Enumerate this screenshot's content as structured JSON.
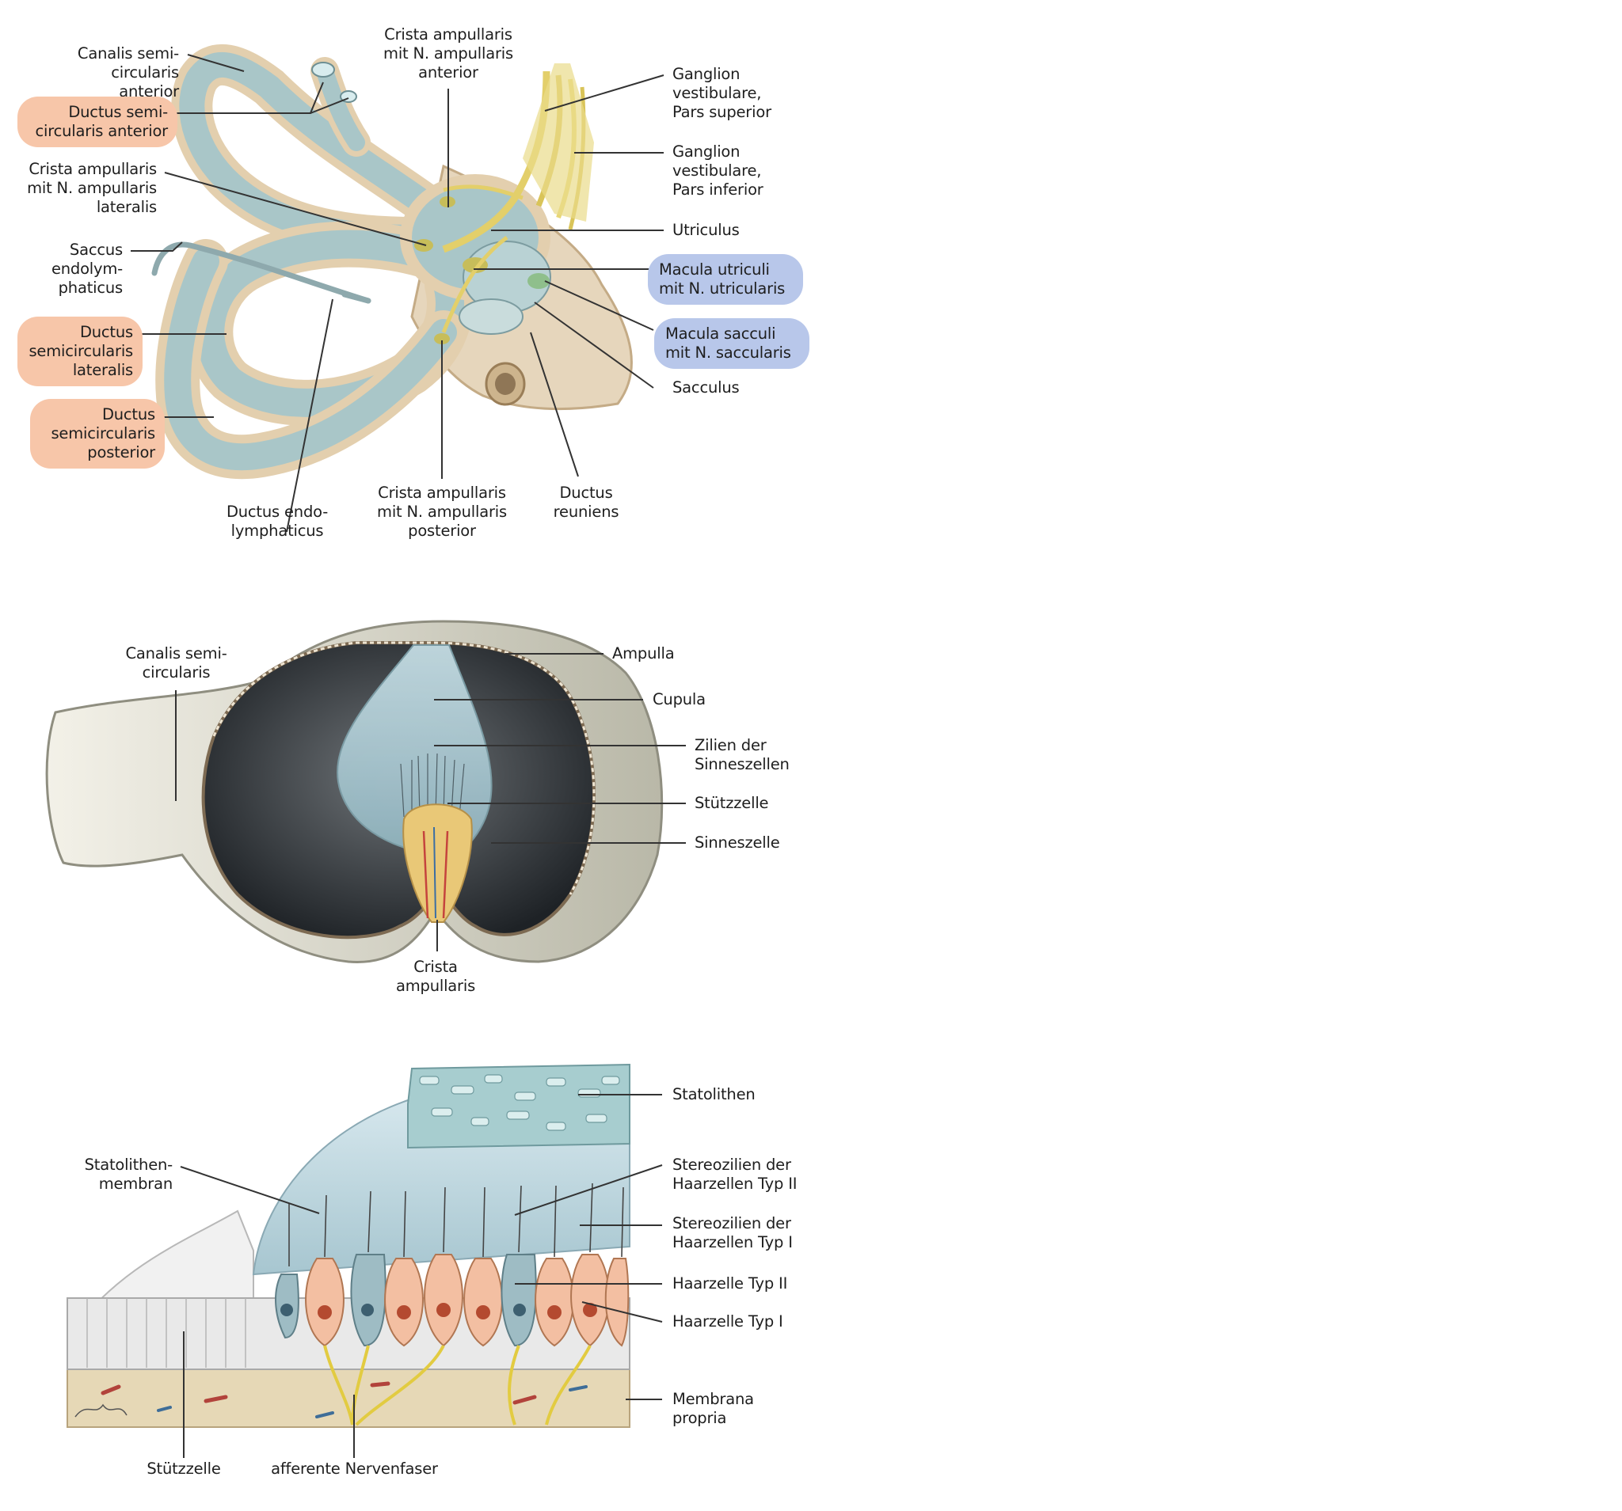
{
  "colors": {
    "highlight_orange": "#f7c6a9",
    "highlight_blue": "#b8c7ea",
    "duct_fill": "#aec9cc",
    "bone_fill": "#e4d3b8",
    "nerve": "#e3cf6a",
    "leader_line": "#333333"
  },
  "fig1": {
    "canalis_anterior": "Canalis semi-\ncircularis anterior",
    "ductus_anterior": "Ductus semi-\ncircularis anterior",
    "crista_lateralis": "Crista ampullaris\nmit N. ampullaris\nlateralis",
    "saccus": "Saccus\nendolym-\nphaticus",
    "ductus_lateralis": "Ductus\nsemicircularis\nlateralis",
    "ductus_posterior": "Ductus\nsemicircularis\nposterior",
    "ductus_endolymph": "Ductus endo-\nlymphaticus",
    "crista_posterior": "Crista ampullaris\nmit N. ampullaris\nposterior",
    "ductus_reuniens": "Ductus\nreuniens",
    "crista_anterior": "Crista ampullaris\nmit N. ampullaris\nanterior",
    "ganglion_superior": "Ganglion\nvestibulare,\nPars superior",
    "ganglion_inferior": "Ganglion\nvestibulare,\nPars inferior",
    "utriculus": "Utriculus",
    "macula_utriculi": "Macula utriculi\nmit N. utricularis",
    "macula_sacculi": "Macula sacculi\nmit N. saccularis",
    "sacculus": "Sacculus"
  },
  "fig2": {
    "canalis": "Canalis semi-\ncircularis",
    "ampulla": "Ampulla",
    "cupula": "Cupula",
    "zilien": "Zilien der\nSinneszellen",
    "stuetzzelle": "Stützzelle",
    "sinneszelle": "Sinneszelle",
    "crista": "Crista\nampullaris"
  },
  "fig3": {
    "statolithen": "Statolithen",
    "statolithen_membran": "Statolithen-\nmembran",
    "stereo_typ2": "Stereozilien der\nHaarzellen Typ II",
    "stereo_typ1": "Stereozilien der\nHaarzellen Typ I",
    "haarzelle_typ2": "Haarzelle Typ II",
    "haarzelle_typ1": "Haarzelle Typ I",
    "membrana_propria": "Membrana\npropria",
    "stuetzzelle": "Stützzelle",
    "afferente": "afferente Nervenfaser"
  }
}
